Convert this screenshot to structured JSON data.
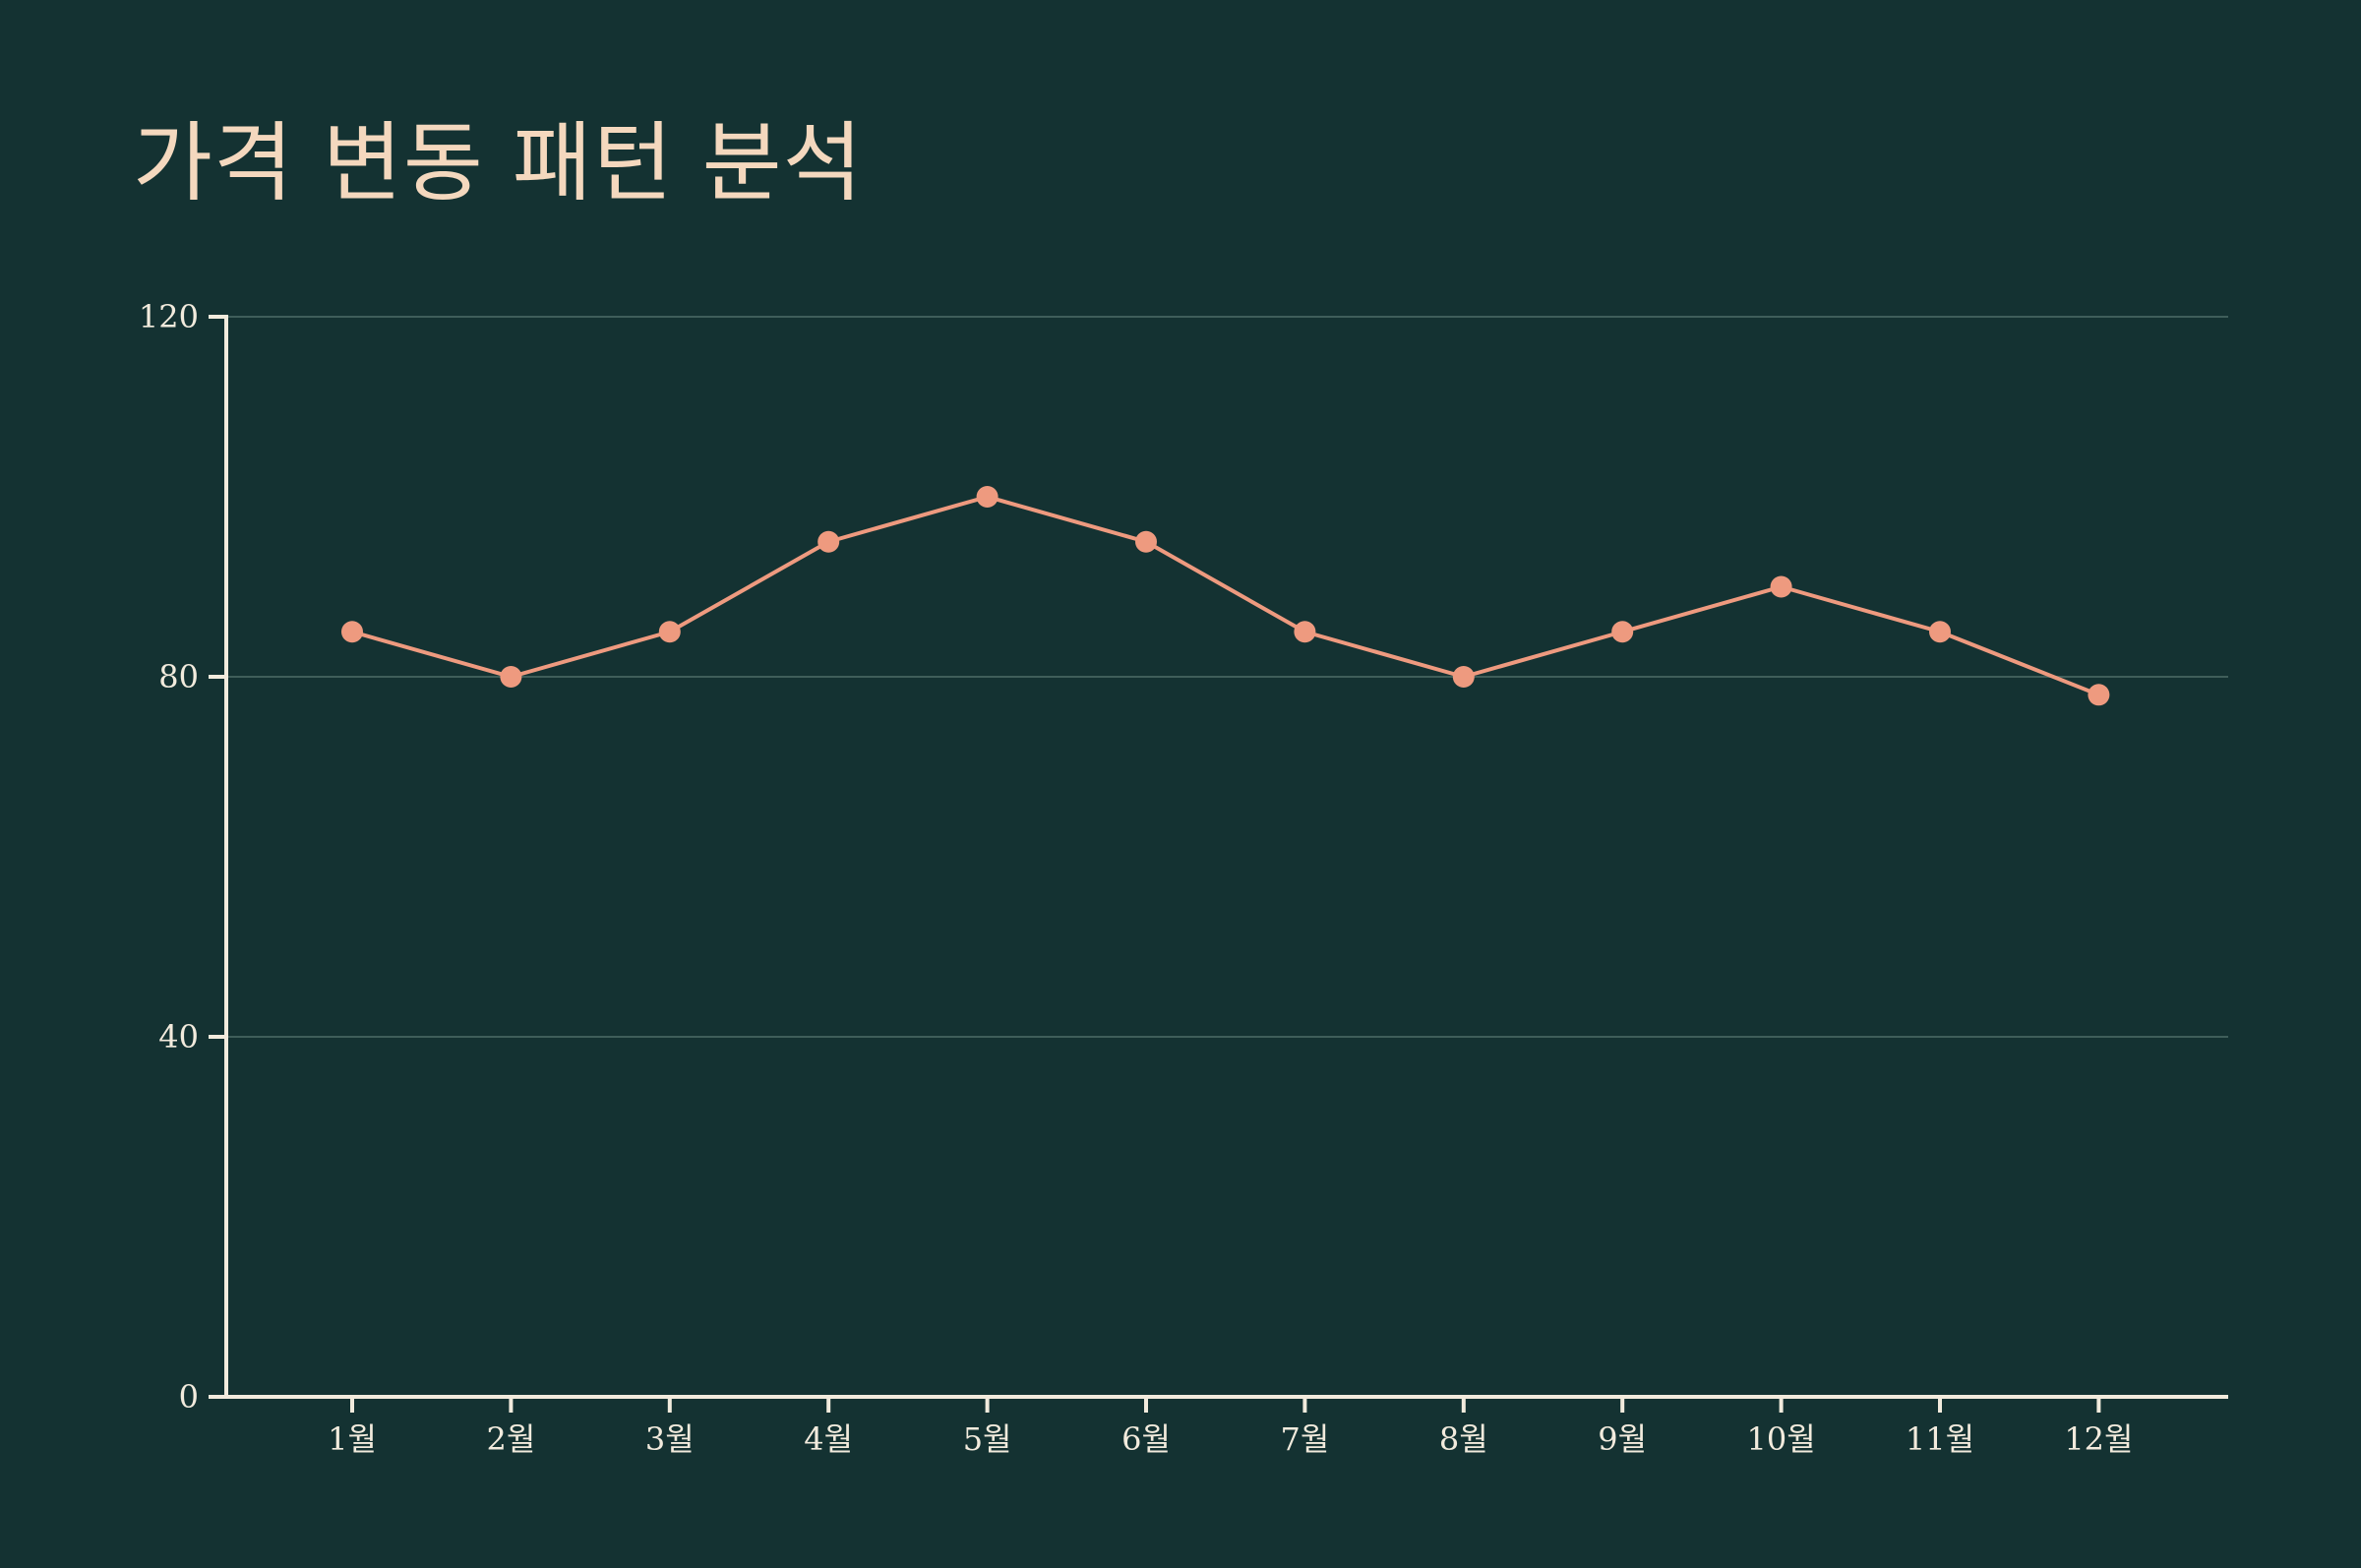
{
  "chart_data": {
    "type": "line",
    "title": "가격 변동 패턴 분석",
    "xlabel": "",
    "ylabel": "",
    "categories": [
      "1월",
      "2월",
      "3월",
      "4월",
      "5월",
      "6월",
      "7월",
      "8월",
      "9월",
      "10월",
      "11월",
      "12월"
    ],
    "series": [
      {
        "values": [
          85,
          80,
          85,
          95,
          100,
          95,
          85,
          80,
          85,
          90,
          85,
          78
        ]
      }
    ],
    "ylim": [
      0,
      120
    ],
    "yticks": [
      0,
      40,
      80,
      120
    ],
    "grid": true,
    "colors": {
      "background": "#143232",
      "line": "#EE9A7F",
      "axis": "#F2EBDD",
      "grid": "#3F5E5A",
      "title": "#F4D8BE"
    }
  }
}
